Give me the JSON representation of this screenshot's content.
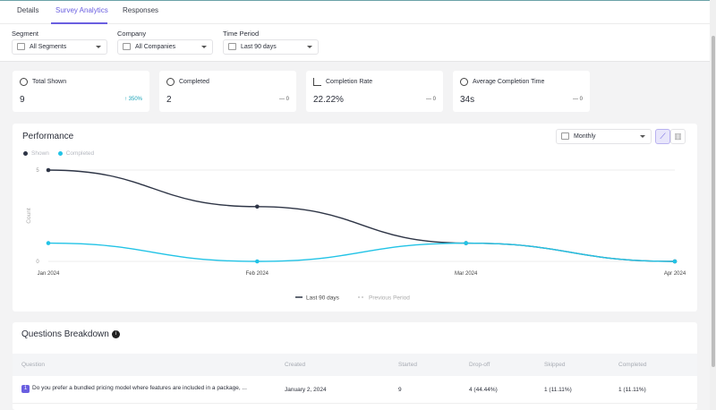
{
  "tabs": [
    {
      "label": "Details"
    },
    {
      "label": "Survey Analytics",
      "active": true
    },
    {
      "label": "Responses"
    }
  ],
  "filters": {
    "segment": {
      "label": "Segment",
      "value": "All Segments"
    },
    "company": {
      "label": "Company",
      "value": "All Companies"
    },
    "period": {
      "label": "Time Period",
      "value": "Last 90 days"
    }
  },
  "cards": [
    {
      "title": "Total Shown",
      "value": "9",
      "delta": "↑ 350%",
      "icon": "eye-icon"
    },
    {
      "title": "Completed",
      "value": "2",
      "delta": "— 0",
      "icon": "speech-bubble-icon"
    },
    {
      "title": "Completion Rate",
      "value": "22.22%",
      "delta": "— 0",
      "icon": "chart-rate-icon"
    },
    {
      "title": "Average Completion Time",
      "value": "34s",
      "delta": "— 0",
      "icon": "stopwatch-icon"
    }
  ],
  "performance": {
    "title": "Performance",
    "granularity": "Monthly",
    "footer_current": "Last 90 days",
    "footer_previous": "Previous Period"
  },
  "colors": {
    "accent": "#6a5fe0",
    "shown": "#2e3546",
    "completed": "#22c3e6"
  },
  "chart_data": {
    "type": "line",
    "categories": [
      "Jan 2024",
      "Feb 2024",
      "Mar 2024",
      "Apr 2024"
    ],
    "series": [
      {
        "name": "Shown",
        "values": [
          5,
          3,
          1,
          0
        ]
      },
      {
        "name": "Completed",
        "values": [
          1,
          0,
          1,
          0
        ]
      }
    ],
    "ylabel": "Count",
    "ylim": [
      0,
      5
    ],
    "yticks": [
      "0",
      "5"
    ],
    "legend": "top-left",
    "grid": true
  },
  "questions": {
    "title": "Questions Breakdown",
    "columns": [
      "Question",
      "Created",
      "Started",
      "Drop-off",
      "Skipped",
      "Completed"
    ],
    "rows": [
      {
        "num": "1",
        "question": "Do you prefer a bundled pricing model where features are included in a package, ...",
        "created": "January 2, 2024",
        "started": "9",
        "dropoff": "4 (44.44%)",
        "skipped": "1 (11.11%)",
        "completed": "1 (11.11%)"
      }
    ]
  }
}
